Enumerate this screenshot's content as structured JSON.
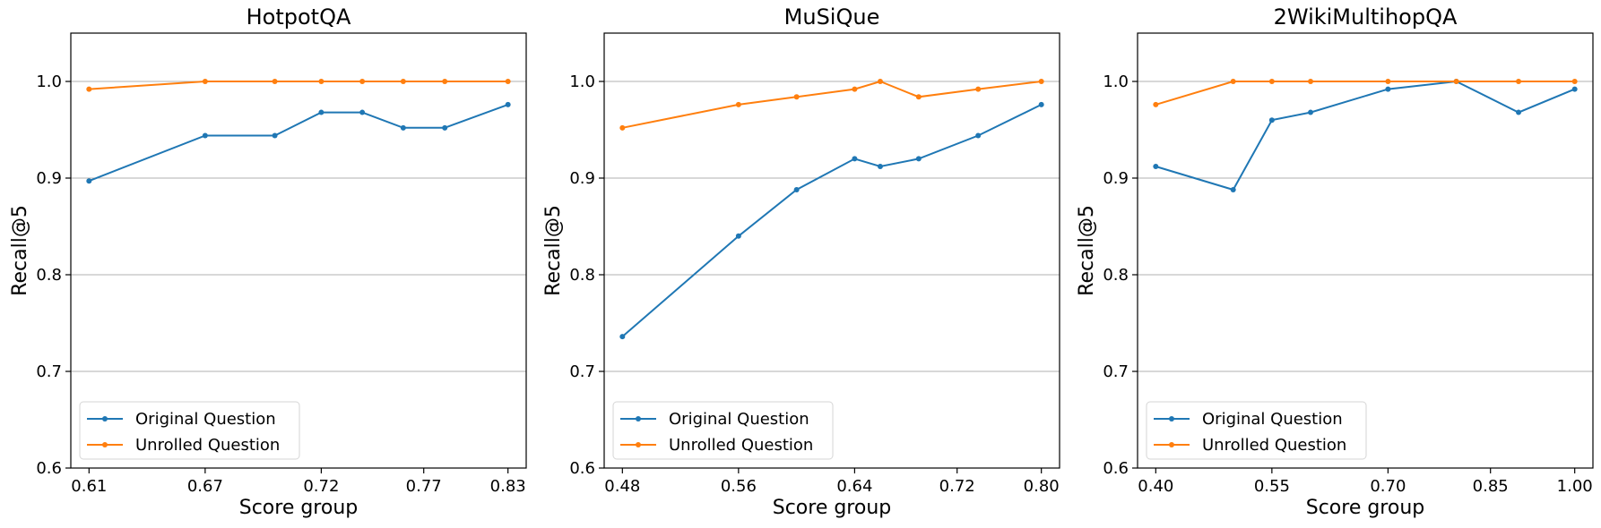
{
  "chart_data": [
    {
      "type": "line",
      "title": "HotpotQA",
      "xlabel": "Score group",
      "ylabel": "Recall@5",
      "x": [
        0.61,
        0.67,
        0.7,
        0.72,
        0.74,
        0.76,
        0.785,
        0.83
      ],
      "xticks": [
        "0.61",
        "0.67",
        "0.72",
        "0.77",
        "0.83"
      ],
      "ylim": [
        0.6,
        1.05
      ],
      "yticks": [
        "0.6",
        "0.7",
        "0.8",
        "0.9",
        "1.0"
      ],
      "grid": "horizontal",
      "legend_position": "lower-left",
      "series": [
        {
          "name": "Original Question",
          "color": "#1f77b4",
          "values": [
            0.897,
            0.944,
            0.944,
            0.968,
            0.968,
            0.952,
            0.952,
            0.976
          ]
        },
        {
          "name": "Unrolled Question",
          "color": "#ff7f0e",
          "values": [
            0.992,
            1.0,
            1.0,
            1.0,
            1.0,
            1.0,
            1.0,
            1.0
          ]
        }
      ]
    },
    {
      "type": "line",
      "title": "MuSiQue",
      "xlabel": "Score group",
      "ylabel": "Recall@5",
      "x": [
        0.48,
        0.56,
        0.6,
        0.64,
        0.66,
        0.69,
        0.74,
        0.8
      ],
      "xticks": [
        "0.48",
        "0.56",
        "0.64",
        "0.72",
        "0.80"
      ],
      "ylim": [
        0.6,
        1.05
      ],
      "yticks": [
        "0.6",
        "0.7",
        "0.8",
        "0.9",
        "1.0"
      ],
      "grid": "horizontal",
      "legend_position": "lower-left",
      "series": [
        {
          "name": "Original Question",
          "color": "#1f77b4",
          "values": [
            0.736,
            0.84,
            0.888,
            0.92,
            0.912,
            0.92,
            0.944,
            0.976
          ]
        },
        {
          "name": "Unrolled Question",
          "color": "#ff7f0e",
          "values": [
            0.952,
            0.976,
            0.984,
            0.992,
            1.0,
            0.984,
            0.992,
            1.0
          ]
        }
      ]
    },
    {
      "type": "line",
      "title": "2WikiMultihopQA",
      "xlabel": "Score group",
      "ylabel": "Recall@5",
      "x": [
        0.4,
        0.5,
        0.55,
        0.6,
        0.7,
        0.8,
        0.9,
        1.0
      ],
      "xticks": [
        "0.40",
        "0.55",
        "0.70",
        "0.85",
        "1.00"
      ],
      "ylim": [
        0.6,
        1.05
      ],
      "yticks": [
        "0.6",
        "0.7",
        "0.8",
        "0.9",
        "1.0"
      ],
      "grid": "horizontal",
      "legend_position": "lower-left",
      "series": [
        {
          "name": "Original Question",
          "color": "#1f77b4",
          "values": [
            0.912,
            0.888,
            0.96,
            0.968,
            0.992,
            1.0,
            0.968,
            0.992
          ]
        },
        {
          "name": "Unrolled Question",
          "color": "#ff7f0e",
          "values": [
            0.976,
            1.0,
            1.0,
            1.0,
            1.0,
            1.0,
            1.0,
            1.0
          ]
        }
      ]
    }
  ]
}
